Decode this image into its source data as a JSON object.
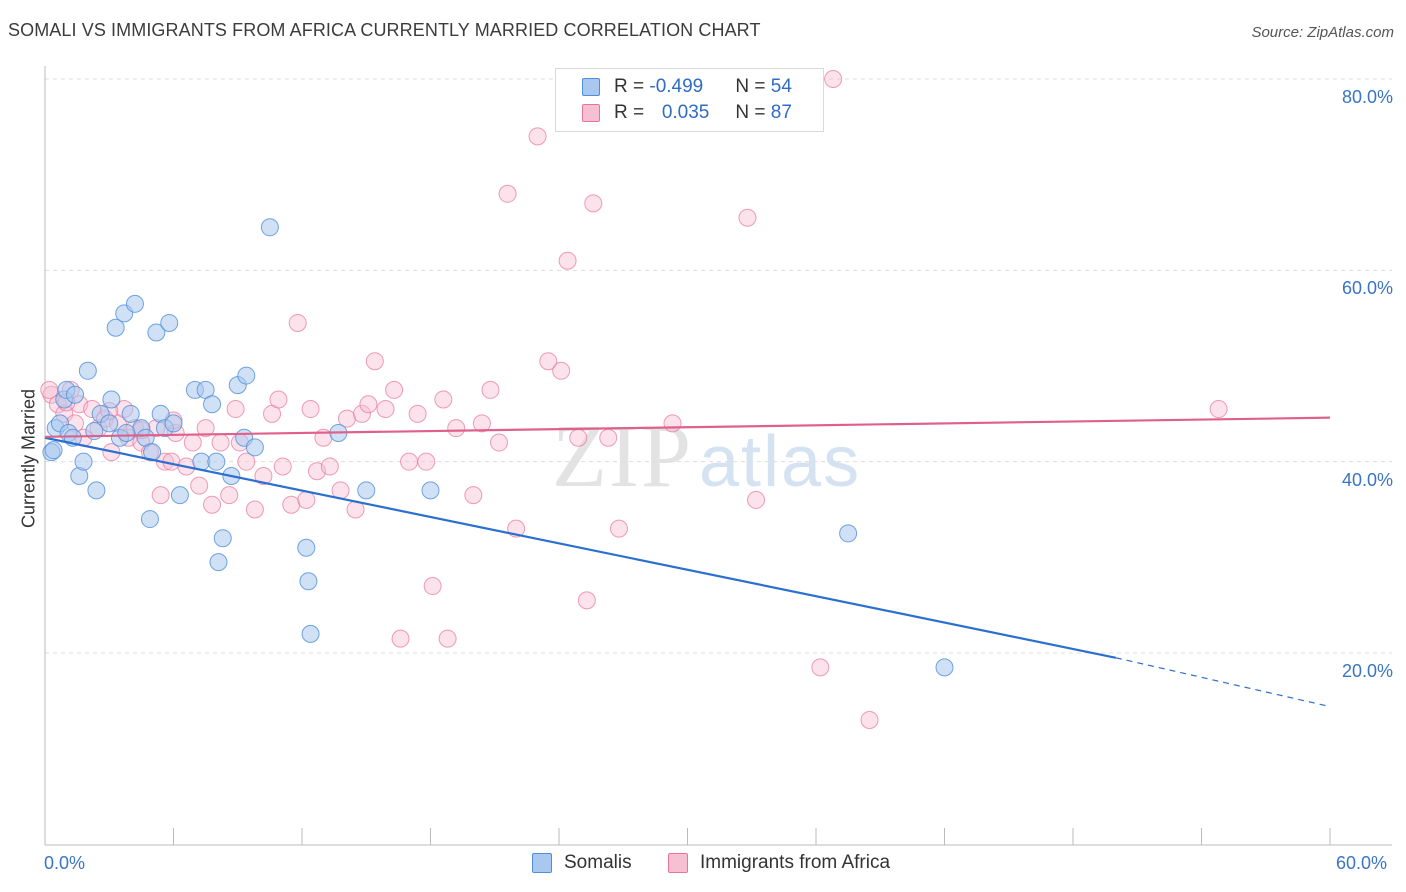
{
  "title": "SOMALI VS IMMIGRANTS FROM AFRICA CURRENTLY MARRIED CORRELATION CHART",
  "source": "Source: ZipAtlas.com",
  "watermark": {
    "zip": "ZIP",
    "atlas": "atlas"
  },
  "colors": {
    "somali": "#4f8ed8",
    "somali_fill": "#a9c8ef",
    "africa": "#e8749d",
    "africa_fill": "#f6bfd2",
    "axis_text": "#3a74c4",
    "grid": "#dddddd"
  },
  "legend": {
    "rows": [
      {
        "r_label": "R = ",
        "r_value": "-0.499",
        "n_label": "N = ",
        "n_value": "54"
      },
      {
        "r_label": "R = ",
        "r_value": "0.035",
        "n_label": "N = ",
        "n_value": "87"
      }
    ]
  },
  "chart_data": {
    "type": "scatter",
    "title": "SOMALI VS IMMIGRANTS FROM AFRICA CURRENTLY MARRIED CORRELATION CHART",
    "ylabel": "Currently Married",
    "xlabel": "",
    "xlim": [
      0,
      60
    ],
    "ylim": [
      0,
      85
    ],
    "x_tick_labels": [
      "0.0%",
      "60.0%"
    ],
    "y_tick_labels": [
      "20.0%",
      "40.0%",
      "60.0%",
      "80.0%"
    ],
    "y_ticks": [
      20,
      40,
      60,
      80
    ],
    "grid": "horizontal dashed",
    "series": [
      {
        "name": "Somalis",
        "r": -0.499,
        "n": 54,
        "trend": {
          "x0": 0,
          "y0": 42.5,
          "x1": 50,
          "y1": 19.5,
          "dashed_to_x": 60,
          "dashed_to_y": 14.4
        },
        "points": [
          [
            0.3,
            41
          ],
          [
            0.5,
            43.5
          ],
          [
            0.7,
            44
          ],
          [
            0.9,
            46.5
          ],
          [
            1.0,
            47.5
          ],
          [
            1.1,
            43
          ],
          [
            1.3,
            42.5
          ],
          [
            1.4,
            47
          ],
          [
            1.6,
            38.5
          ],
          [
            1.8,
            40
          ],
          [
            2.0,
            49.5
          ],
          [
            2.4,
            37
          ],
          [
            2.6,
            45
          ],
          [
            3.0,
            44
          ],
          [
            3.1,
            46.5
          ],
          [
            3.3,
            54
          ],
          [
            3.5,
            42.5
          ],
          [
            3.7,
            55.5
          ],
          [
            4.0,
            45
          ],
          [
            4.2,
            56.5
          ],
          [
            4.5,
            43.5
          ],
          [
            4.7,
            42.5
          ],
          [
            4.9,
            34
          ],
          [
            5.0,
            41
          ],
          [
            5.2,
            53.5
          ],
          [
            5.4,
            45
          ],
          [
            5.6,
            43.5
          ],
          [
            5.8,
            54.5
          ],
          [
            6.0,
            44
          ],
          [
            6.3,
            36.5
          ],
          [
            7.0,
            47.5
          ],
          [
            7.3,
            40
          ],
          [
            7.5,
            47.5
          ],
          [
            7.8,
            46
          ],
          [
            8.0,
            40
          ],
          [
            8.1,
            29.5
          ],
          [
            8.3,
            32
          ],
          [
            8.7,
            38.5
          ],
          [
            9.0,
            48
          ],
          [
            9.3,
            42.5
          ],
          [
            9.4,
            49
          ],
          [
            9.8,
            41.5
          ],
          [
            10.5,
            64.5
          ],
          [
            12.2,
            31
          ],
          [
            12.3,
            27.5
          ],
          [
            12.4,
            22
          ],
          [
            13.7,
            43
          ],
          [
            15.0,
            37
          ],
          [
            18.0,
            37
          ],
          [
            37.5,
            32.5
          ],
          [
            42.0,
            18.5
          ],
          [
            0.4,
            41.2
          ],
          [
            2.3,
            43.2
          ],
          [
            3.8,
            43.0
          ]
        ]
      },
      {
        "name": "Immigrants from Africa",
        "r": 0.035,
        "n": 87,
        "trend": {
          "x0": 0,
          "y0": 42.6,
          "x1": 60,
          "y1": 44.6
        },
        "points": [
          [
            0.3,
            47
          ],
          [
            0.6,
            46
          ],
          [
            0.9,
            45
          ],
          [
            1.2,
            47.5
          ],
          [
            1.4,
            44
          ],
          [
            1.6,
            46
          ],
          [
            1.8,
            42.5
          ],
          [
            2.2,
            45.5
          ],
          [
            2.5,
            43.5
          ],
          [
            2.8,
            44.5
          ],
          [
            3.1,
            41
          ],
          [
            3.4,
            44
          ],
          [
            3.7,
            45.5
          ],
          [
            3.9,
            42.5
          ],
          [
            4.2,
            43.5
          ],
          [
            4.5,
            42
          ],
          [
            4.9,
            41
          ],
          [
            5.2,
            43.5
          ],
          [
            5.4,
            36.5
          ],
          [
            5.6,
            40
          ],
          [
            5.9,
            40
          ],
          [
            6.1,
            43
          ],
          [
            6.6,
            39.5
          ],
          [
            6.9,
            42
          ],
          [
            7.2,
            37.5
          ],
          [
            7.5,
            43.5
          ],
          [
            7.8,
            35.5
          ],
          [
            8.2,
            42
          ],
          [
            8.6,
            36.5
          ],
          [
            8.9,
            45.5
          ],
          [
            9.1,
            42
          ],
          [
            9.4,
            40
          ],
          [
            9.8,
            35
          ],
          [
            10.2,
            38.5
          ],
          [
            10.6,
            45
          ],
          [
            10.9,
            46.5
          ],
          [
            11.1,
            39.5
          ],
          [
            11.5,
            35.5
          ],
          [
            11.8,
            54.5
          ],
          [
            12.2,
            36
          ],
          [
            12.4,
            45.5
          ],
          [
            12.7,
            39
          ],
          [
            13.0,
            42.5
          ],
          [
            13.3,
            39.5
          ],
          [
            13.8,
            37
          ],
          [
            14.1,
            44.5
          ],
          [
            14.5,
            35
          ],
          [
            14.8,
            45
          ],
          [
            15.1,
            46
          ],
          [
            15.4,
            50.5
          ],
          [
            15.9,
            45.5
          ],
          [
            16.3,
            47.5
          ],
          [
            16.6,
            21.5
          ],
          [
            17.0,
            40
          ],
          [
            17.4,
            45
          ],
          [
            17.8,
            40
          ],
          [
            18.1,
            27
          ],
          [
            18.6,
            46.5
          ],
          [
            18.8,
            21.5
          ],
          [
            19.2,
            43.5
          ],
          [
            20.0,
            36.5
          ],
          [
            20.4,
            44
          ],
          [
            20.8,
            47.5
          ],
          [
            21.2,
            42
          ],
          [
            21.6,
            68
          ],
          [
            22.0,
            33
          ],
          [
            23.0,
            74
          ],
          [
            23.5,
            50.5
          ],
          [
            24.1,
            49.5
          ],
          [
            24.4,
            61
          ],
          [
            24.9,
            42.5
          ],
          [
            25.3,
            25.5
          ],
          [
            25.6,
            67
          ],
          [
            26.3,
            42.5
          ],
          [
            26.8,
            33
          ],
          [
            29.3,
            44
          ],
          [
            32.8,
            65.5
          ],
          [
            33.2,
            36
          ],
          [
            36.2,
            18.5
          ],
          [
            36.8,
            80
          ],
          [
            38.5,
            13
          ],
          [
            54.8,
            45.5
          ],
          [
            0.2,
            47.5
          ],
          [
            1.0,
            46.2
          ],
          [
            3.0,
            45.3
          ],
          [
            4.5,
            43.3
          ],
          [
            6.0,
            44.3
          ]
        ]
      }
    ]
  },
  "bottom_legend": [
    {
      "label": "Somalis"
    },
    {
      "label": "Immigrants from Africa"
    }
  ]
}
